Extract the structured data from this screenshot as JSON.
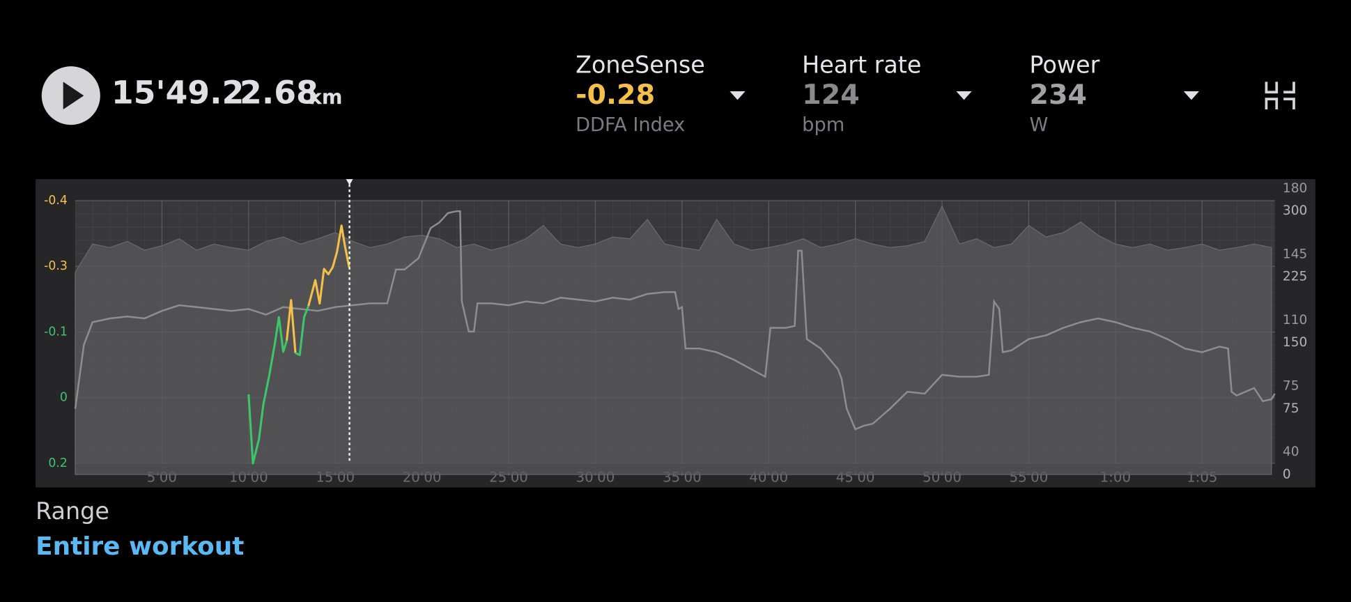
{
  "header": {
    "time": "15'49.2",
    "distance": "2.68",
    "distance_unit": "km"
  },
  "metrics": [
    {
      "label": "ZoneSense",
      "value": "-0.28",
      "unit": "DDFA Index",
      "color": "#f5c04a"
    },
    {
      "label": "Heart rate",
      "value": "124",
      "unit": "bpm",
      "color": "#8a8a8e"
    },
    {
      "label": "Power",
      "value": "234",
      "unit": "W",
      "color": "#a2a2a6"
    }
  ],
  "chart_data": {
    "type": "line",
    "xlim": [
      0,
      69.2
    ],
    "xticks": [
      {
        "value": 5,
        "label": "5'00"
      },
      {
        "value": 10,
        "label": "10'00"
      },
      {
        "value": 15,
        "label": "15'00"
      },
      {
        "value": 20,
        "label": "20'00"
      },
      {
        "value": 25,
        "label": "25'00"
      },
      {
        "value": 30,
        "label": "30'00"
      },
      {
        "value": 35,
        "label": "35'00"
      },
      {
        "value": 40,
        "label": "40'00"
      },
      {
        "value": 45,
        "label": "45'00"
      },
      {
        "value": 50,
        "label": "50'00"
      },
      {
        "value": 55,
        "label": "55'00"
      },
      {
        "value": 60,
        "label": "1:00"
      },
      {
        "value": 65,
        "label": "1:05"
      }
    ],
    "ylim": [
      -0.4,
      0.2
    ],
    "yticks": [
      -0.4,
      -0.3,
      -0.1,
      0,
      0.2
    ],
    "y_reversed": true,
    "y2lim": [
      28,
      180
    ],
    "y2ticks": [
      40,
      75,
      110,
      145,
      180
    ],
    "y3lim": [
      0,
      325
    ],
    "y3ticks": [
      0,
      75,
      150,
      225,
      300
    ],
    "grid": true,
    "cursor_x": 15.82,
    "series": [
      {
        "axis": "y3",
        "color": "#5a5a5c",
        "fill": true,
        "x": [
          0,
          1,
          2,
          3,
          4,
          5,
          6,
          7,
          8,
          9,
          10,
          11,
          12,
          13,
          14,
          15,
          16,
          17,
          18,
          19,
          20,
          21,
          22,
          23,
          24,
          25,
          26,
          27,
          28,
          29,
          30,
          31,
          32,
          33,
          34,
          35,
          36,
          37,
          38,
          39,
          40,
          41,
          42,
          43,
          44,
          45,
          46,
          47,
          48,
          49,
          50,
          51,
          52,
          53,
          54,
          55,
          56,
          57,
          58,
          59,
          60,
          61,
          62,
          63,
          64,
          65,
          66,
          67,
          68,
          69
        ],
        "values": [
          230,
          262,
          258,
          265,
          255,
          260,
          268,
          255,
          262,
          258,
          255,
          265,
          270,
          262,
          268,
          275,
          265,
          258,
          262,
          270,
          272,
          268,
          258,
          262,
          255,
          260,
          268,
          283,
          262,
          258,
          262,
          270,
          268,
          290,
          262,
          258,
          255,
          290,
          262,
          255,
          258,
          262,
          268,
          258,
          262,
          268,
          262,
          258,
          260,
          265,
          305,
          262,
          268,
          258,
          262,
          283,
          270,
          275,
          287,
          272,
          262,
          258,
          262,
          255,
          258,
          262,
          255,
          258,
          262,
          258
        ]
      },
      {
        "axis": "y2",
        "color": "#8e8e90",
        "x": [
          0,
          0.5,
          1,
          2,
          3,
          4,
          5,
          6,
          7,
          8,
          9,
          10,
          11,
          12,
          13,
          14,
          15,
          16,
          17,
          18,
          18.5,
          19,
          19.8,
          20.5,
          21,
          21.5,
          22,
          22.2,
          22.3,
          22.7,
          23,
          23.2,
          24,
          25,
          26,
          27,
          28,
          29,
          30,
          31,
          32,
          33,
          34,
          34.6,
          34.8,
          35,
          35.2,
          36,
          37,
          38,
          39,
          39.8,
          40.1,
          41,
          41.5,
          41.7,
          41.9,
          42.2,
          43,
          44,
          44.2,
          44.5,
          45,
          45.5,
          46,
          47,
          48,
          49,
          50,
          51,
          52,
          52.7,
          53,
          53.3,
          53.5,
          54,
          55,
          56,
          57,
          58,
          59,
          60,
          61,
          62,
          63,
          64,
          65,
          66,
          66.5,
          66.7,
          67,
          68,
          68.5,
          69,
          69.2
        ],
        "values": [
          63,
          97,
          109,
          111,
          112,
          111,
          115,
          118,
          117,
          116,
          115,
          116,
          113,
          117,
          116,
          115,
          117,
          118,
          119,
          119,
          137,
          137,
          143,
          159,
          162,
          167,
          168,
          168,
          120,
          104,
          104,
          119,
          119,
          118,
          120,
          119,
          122,
          121,
          120,
          122,
          121,
          124,
          125,
          125,
          116,
          117,
          95,
          95,
          93,
          89,
          84,
          80,
          106,
          106,
          107,
          147,
          147,
          100,
          95,
          84,
          79,
          63,
          52,
          54,
          55,
          63,
          72,
          71,
          81,
          80,
          80,
          81,
          120,
          116,
          93,
          94,
          100,
          102,
          106,
          109,
          111,
          109,
          106,
          104,
          100,
          95,
          93,
          96,
          95,
          72,
          70,
          74,
          67,
          68,
          71
        ]
      },
      {
        "axis": "y",
        "color": "#3ec46d",
        "high_color": "#f5c04a",
        "color_threshold": -0.19,
        "x": [
          10,
          10.25,
          10.6,
          10.85,
          11.2,
          11.5,
          11.75,
          12,
          12.2,
          12.45,
          12.7,
          12.95,
          13.2,
          13.45,
          13.65,
          13.85,
          14.1,
          14.35,
          14.6,
          14.85,
          15.1,
          15.36,
          15.55,
          15.8
        ],
        "values": [
          -0.005,
          0.2,
          0.126,
          0.021,
          -0.035,
          -0.08,
          -0.145,
          -0.07,
          -0.087,
          -0.197,
          -0.068,
          -0.065,
          -0.145,
          -0.179,
          -0.218,
          -0.258,
          -0.187,
          -0.292,
          -0.276,
          -0.297,
          -0.322,
          -0.362,
          -0.332,
          -0.297
        ]
      }
    ]
  },
  "range": {
    "label": "Range",
    "value": "Entire workout"
  }
}
